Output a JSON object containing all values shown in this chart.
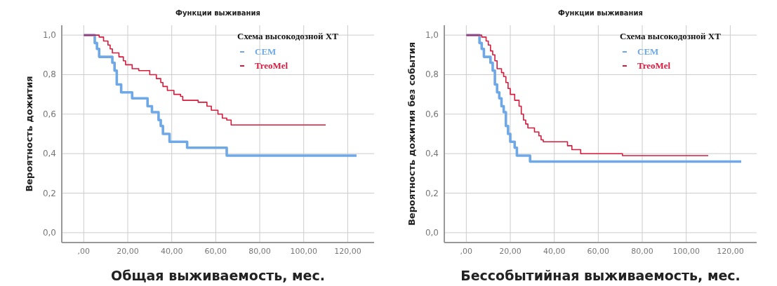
{
  "chart_data": [
    {
      "type": "step",
      "title": "Функции выживания",
      "xlabel": "Общая выживаемость, мес.",
      "ylabel": "Вероятность дожития",
      "legend_title": "Схема высокодозной ХТ",
      "legend": "top right",
      "grid": true,
      "xlim": [
        -10,
        132
      ],
      "ylim": [
        -0.05,
        1.05
      ],
      "xticks": [
        {
          "value": 0,
          "label": ",00"
        },
        {
          "value": 20,
          "label": "20,00"
        },
        {
          "value": 40,
          "label": "40,00"
        },
        {
          "value": 60,
          "label": "60,00"
        },
        {
          "value": 80,
          "label": "80,00"
        },
        {
          "value": 100,
          "label": "100,00"
        },
        {
          "value": 120,
          "label": "120,00"
        }
      ],
      "yticks": [
        {
          "value": 0,
          "label": "0,0"
        },
        {
          "value": 0.2,
          "label": "0,2"
        },
        {
          "value": 0.4,
          "label": "0,4"
        },
        {
          "value": 0.6,
          "label": "0,6"
        },
        {
          "value": 0.8,
          "label": "0,8"
        },
        {
          "value": 1,
          "label": "1,0"
        }
      ],
      "series": [
        {
          "name": "CEM",
          "color": "#6fa8e6",
          "x": [
            0,
            5,
            6,
            7,
            13,
            14,
            15,
            17,
            22,
            29,
            31,
            34,
            35,
            36,
            39,
            47,
            65,
            124
          ],
          "values": [
            1,
            0.96,
            0.93,
            0.89,
            0.86,
            0.82,
            0.75,
            0.71,
            0.68,
            0.64,
            0.61,
            0.57,
            0.54,
            0.5,
            0.46,
            0.43,
            0.39,
            0.39
          ]
        },
        {
          "name": "TreoMel",
          "color": "#d81b3c",
          "x": [
            0,
            7,
            9,
            11,
            12,
            13,
            16,
            18,
            19,
            22,
            25,
            30,
            33,
            35,
            36,
            38,
            41,
            44,
            45,
            52,
            56,
            58,
            61,
            63,
            65,
            67,
            110
          ],
          "values": [
            1,
            0.99,
            0.97,
            0.95,
            0.93,
            0.91,
            0.89,
            0.87,
            0.85,
            0.83,
            0.82,
            0.8,
            0.78,
            0.76,
            0.74,
            0.72,
            0.7,
            0.69,
            0.67,
            0.66,
            0.64,
            0.62,
            0.6,
            0.58,
            0.57,
            0.545,
            0.545
          ]
        }
      ]
    },
    {
      "type": "step",
      "title": "Функции выживания",
      "xlabel": "Бессобытийная выживаемость, мес.",
      "ylabel": "Вероятность дожития без события",
      "legend_title": "Схема высокодозной ХТ",
      "legend": "top right",
      "grid": true,
      "xlim": [
        -10,
        132
      ],
      "ylim": [
        -0.05,
        1.05
      ],
      "xticks": [
        {
          "value": 0,
          "label": ",00"
        },
        {
          "value": 20,
          "label": "20,00"
        },
        {
          "value": 40,
          "label": "40,00"
        },
        {
          "value": 60,
          "label": "60,00"
        },
        {
          "value": 80,
          "label": "80,00"
        },
        {
          "value": 100,
          "label": "100,00"
        },
        {
          "value": 120,
          "label": "120,00"
        }
      ],
      "yticks": [
        {
          "value": 0,
          "label": "0,0"
        },
        {
          "value": 0.2,
          "label": "0,2"
        },
        {
          "value": 0.4,
          "label": "0,4"
        },
        {
          "value": 0.6,
          "label": "0,6"
        },
        {
          "value": 0.8,
          "label": "0,8"
        },
        {
          "value": 1,
          "label": "1,0"
        }
      ],
      "series": [
        {
          "name": "CEM",
          "color": "#6fa8e6",
          "x": [
            0,
            6,
            7,
            8,
            11,
            12,
            13,
            14,
            15,
            16,
            17,
            18,
            19,
            20,
            22,
            23,
            29,
            125
          ],
          "values": [
            1,
            0.96,
            0.93,
            0.89,
            0.86,
            0.82,
            0.75,
            0.71,
            0.68,
            0.64,
            0.61,
            0.54,
            0.5,
            0.46,
            0.43,
            0.39,
            0.36,
            0.36
          ]
        },
        {
          "name": "TreoMel",
          "color": "#d81b3c",
          "x": [
            0,
            7,
            9,
            10,
            11,
            12,
            13,
            14,
            16,
            17,
            18,
            19,
            20,
            22,
            24,
            25,
            26,
            27,
            28,
            31,
            33,
            34,
            35,
            46,
            48,
            52,
            71,
            110
          ],
          "values": [
            1,
            0.99,
            0.97,
            0.95,
            0.92,
            0.9,
            0.87,
            0.83,
            0.81,
            0.79,
            0.76,
            0.73,
            0.7,
            0.67,
            0.64,
            0.6,
            0.57,
            0.55,
            0.53,
            0.51,
            0.49,
            0.47,
            0.46,
            0.44,
            0.42,
            0.4,
            0.39,
            0.39
          ]
        }
      ]
    }
  ]
}
